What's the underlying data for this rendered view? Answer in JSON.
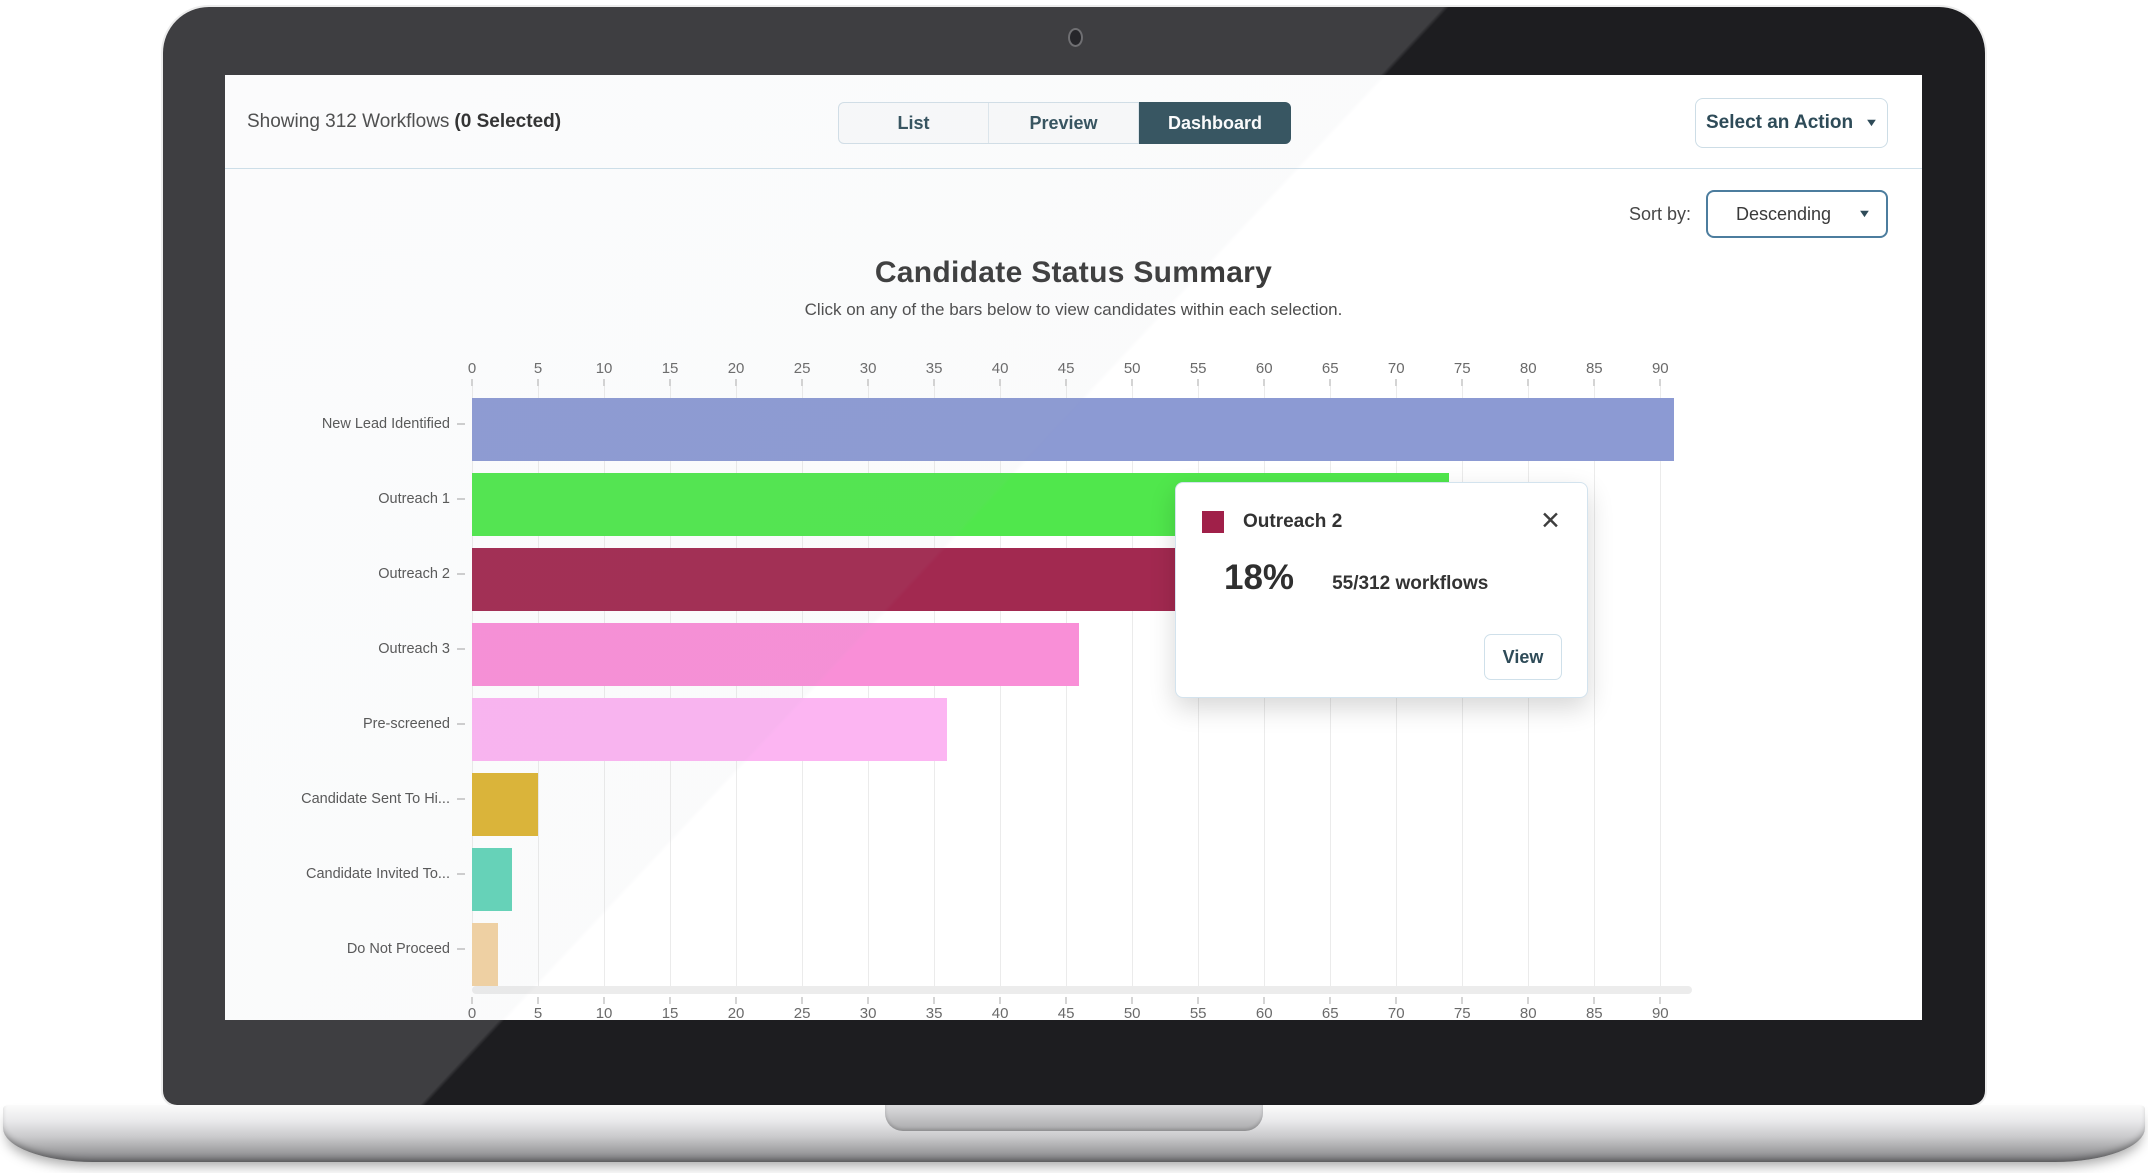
{
  "header": {
    "showing_prefix": "Showing 312 Workflows",
    "showing_emphasis": "(0 Selected)",
    "tabs": [
      {
        "label": "List",
        "active": false
      },
      {
        "label": "Preview",
        "active": false
      },
      {
        "label": "Dashboard",
        "active": true
      }
    ],
    "action_button_label": "Select an Action"
  },
  "sort": {
    "label": "Sort by:",
    "value": "Descending"
  },
  "icons": {
    "caret_down": "▼",
    "close": "✕"
  },
  "chart_data": {
    "type": "bar",
    "orientation": "horizontal",
    "title": "Candidate Status Summary",
    "subtitle": "Click on any of the bars below to view candidates within each selection.",
    "categories": [
      "New Lead Identified",
      "Outreach 1",
      "Outreach 2",
      "Outreach 3",
      "Pre-screened",
      "Candidate Sent To Hi...",
      "Candidate Invited To...",
      "Do Not Proceed"
    ],
    "values": [
      91,
      74,
      55,
      46,
      36,
      5,
      3,
      2
    ],
    "colors": [
      "#8c9ad3",
      "#50e74c",
      "#a22950",
      "#f98fd7",
      "#fcb5f2",
      "#ddb433",
      "#63d4b8",
      "#f2d2a2"
    ],
    "total_workflows": 312,
    "axis_ticks": [
      0,
      5,
      10,
      15,
      20,
      25,
      30,
      35,
      40,
      45,
      50,
      55,
      60,
      65,
      70,
      75,
      80,
      85,
      90
    ],
    "axis_max": 92.4,
    "grid": "vertical-gridlines",
    "legend": "none"
  },
  "tooltip": {
    "category": "Outreach 2",
    "swatch_color": "#a02049",
    "percent": "18%",
    "detail": "55/312 workflows",
    "view_label": "View"
  }
}
